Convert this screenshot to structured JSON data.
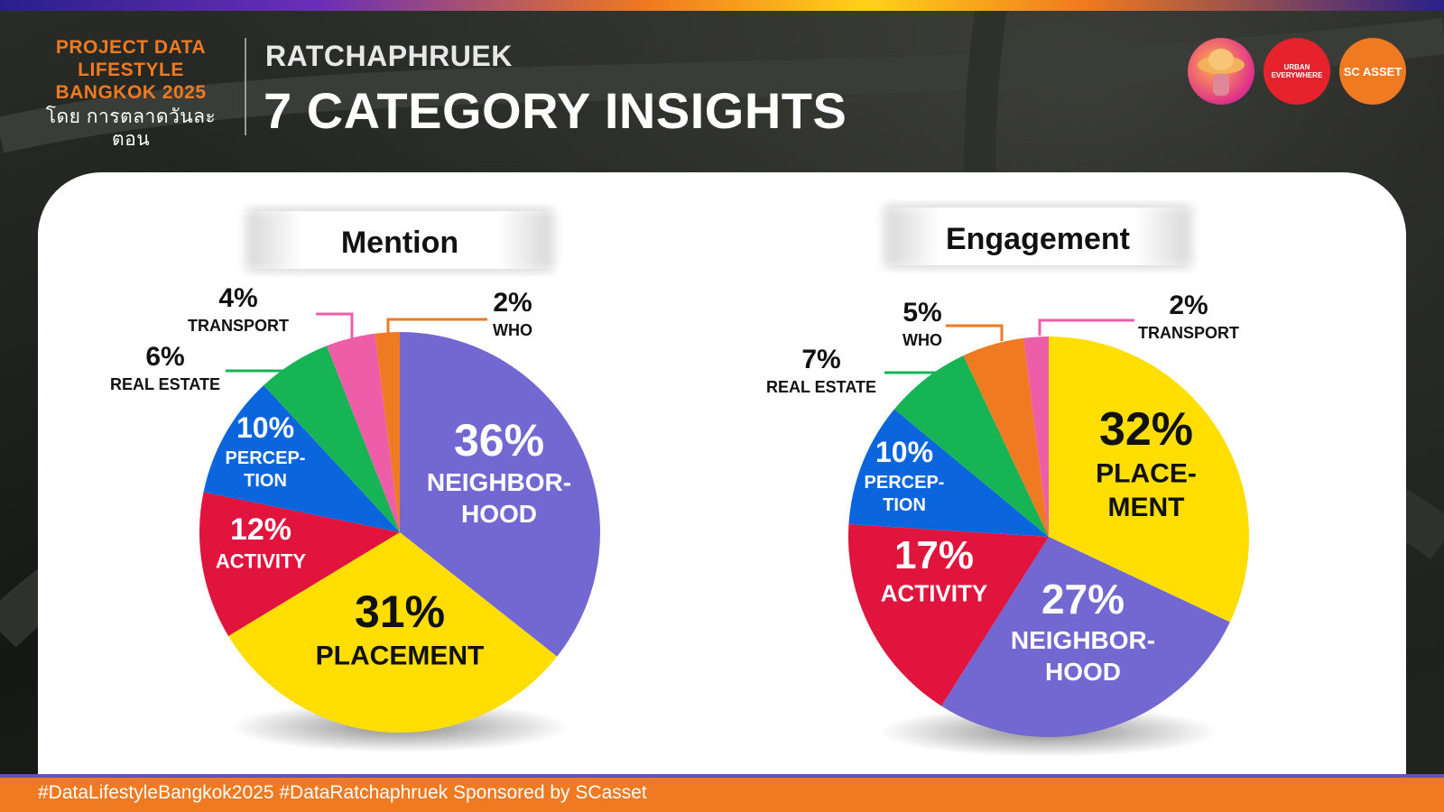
{
  "header": {
    "brand_line1": "PROJECT DATA",
    "brand_line2": "LIFESTYLE",
    "brand_line3": "BANGKOK 2025",
    "brand_sub": "โดย การตลาดวันละตอน",
    "subtitle": "RATCHAPHRUEK",
    "title": "7 CATEGORY INSIGHTS"
  },
  "logos": {
    "logo2_line1": "URBAN",
    "logo2_line2": "EVERYWHERE",
    "logo3": "SC ASSET"
  },
  "footer": {
    "text": "#DataLifestyleBangkok2025 #DataRatchaphruek Sponsored by SCasset"
  },
  "colors": {
    "neighborhood": "#7367d2",
    "placement": "#ffde00",
    "activity": "#e0143c",
    "perception": "#0b66dd",
    "real_estate": "#16b454",
    "transport": "#ee5ea8",
    "who": "#f07a22"
  },
  "chart_data": [
    {
      "type": "pie",
      "title": "Mention",
      "slices": [
        {
          "key": "neighborhood",
          "label": "NEIGHBOR-HOOD",
          "lines": [
            "NEIGHBOR-",
            "HOOD"
          ],
          "value": 36,
          "value_label": "36%"
        },
        {
          "key": "placement",
          "label": "PLACEMENT",
          "lines": [
            "PLACEMENT"
          ],
          "value": 31,
          "value_label": "31%"
        },
        {
          "key": "activity",
          "label": "ACTIVITY",
          "lines": [
            "ACTIVITY"
          ],
          "value": 12,
          "value_label": "12%"
        },
        {
          "key": "perception",
          "label": "PERCEP-TION",
          "lines": [
            "PERCEP-",
            "TION"
          ],
          "value": 10,
          "value_label": "10%"
        },
        {
          "key": "real_estate",
          "label": "REAL ESTATE",
          "lines": [
            "REAL ESTATE"
          ],
          "value": 6,
          "value_label": "6%"
        },
        {
          "key": "transport",
          "label": "TRANSPORT",
          "lines": [
            "TRANSPORT"
          ],
          "value": 4,
          "value_label": "4%"
        },
        {
          "key": "who",
          "label": "WHO",
          "lines": [
            "WHO"
          ],
          "value": 2,
          "value_label": "2%"
        }
      ]
    },
    {
      "type": "pie",
      "title": "Engagement",
      "slices": [
        {
          "key": "placement",
          "label": "PLACE-MENT",
          "lines": [
            "PLACE-",
            "MENT"
          ],
          "value": 32,
          "value_label": "32%"
        },
        {
          "key": "neighborhood",
          "label": "NEIGHBOR-HOOD",
          "lines": [
            "NEIGHBOR-",
            "HOOD"
          ],
          "value": 27,
          "value_label": "27%"
        },
        {
          "key": "activity",
          "label": "ACTIVITY",
          "lines": [
            "ACTIVITY"
          ],
          "value": 17,
          "value_label": "17%"
        },
        {
          "key": "perception",
          "label": "PERCEP-TION",
          "lines": [
            "PERCEP-",
            "TION"
          ],
          "value": 10,
          "value_label": "10%"
        },
        {
          "key": "real_estate",
          "label": "REAL ESTATE",
          "lines": [
            "REAL ESTATE"
          ],
          "value": 7,
          "value_label": "7%"
        },
        {
          "key": "who",
          "label": "WHO",
          "lines": [
            "WHO"
          ],
          "value": 5,
          "value_label": "5%"
        },
        {
          "key": "transport",
          "label": "TRANSPORT",
          "lines": [
            "TRANSPORT"
          ],
          "value": 2,
          "value_label": "2%"
        }
      ]
    }
  ]
}
